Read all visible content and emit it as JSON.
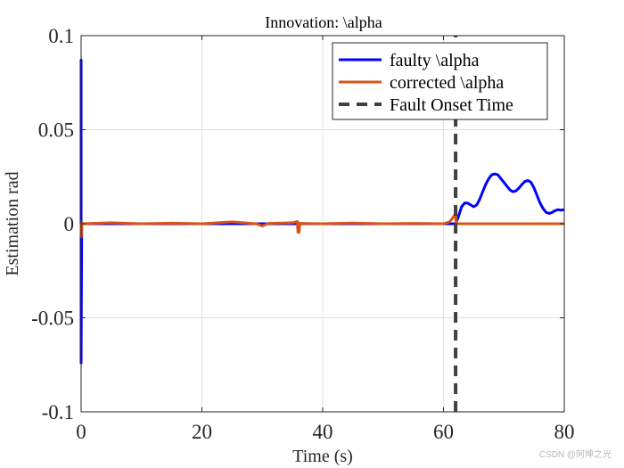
{
  "chart_data": {
    "type": "line",
    "title": "Innovation: \\alpha",
    "xlabel": "Time (s)",
    "ylabel": "Estimation rad",
    "xlim": [
      0,
      80
    ],
    "ylim": [
      -0.1,
      0.1
    ],
    "xticks": [
      0,
      20,
      40,
      60,
      80
    ],
    "xtick_labels": [
      "0",
      "20",
      "40",
      "60",
      "80"
    ],
    "yticks": [
      -0.1,
      -0.05,
      0,
      0.05,
      0.1
    ],
    "ytick_labels": [
      "-0.1",
      "-0.05",
      "0",
      "0.05",
      "0.1"
    ],
    "grid": true,
    "legend_position": "top-right",
    "series": [
      {
        "name": "faulty \\alpha",
        "color": "#0000ff",
        "x": [
          0,
          0,
          0,
          0.1,
          61.9,
          62,
          62.5,
          63,
          63.5,
          64,
          64.5,
          65,
          65.5,
          66,
          66.5,
          67,
          67.5,
          68,
          68.5,
          69,
          69.5,
          70,
          70.5,
          71,
          71.5,
          72,
          72.5,
          73,
          73.5,
          74,
          74.5,
          75,
          75.5,
          76,
          76.5,
          77,
          77.5,
          78,
          78.5,
          79,
          79.5,
          80
        ],
        "y": [
          0,
          0.087,
          -0.074,
          0,
          0,
          0.0,
          0.004,
          0.009,
          0.011,
          0.011,
          0.01,
          0.009,
          0.01,
          0.013,
          0.017,
          0.021,
          0.024,
          0.026,
          0.0265,
          0.026,
          0.024,
          0.022,
          0.02,
          0.018,
          0.017,
          0.0175,
          0.019,
          0.021,
          0.0225,
          0.023,
          0.022,
          0.019,
          0.015,
          0.011,
          0.008,
          0.006,
          0.0055,
          0.006,
          0.007,
          0.0075,
          0.0072,
          0.0075
        ]
      },
      {
        "name": "corrected \\alpha",
        "color": "#d95319",
        "x": [
          0,
          0.05,
          0.1,
          0.15,
          5,
          10,
          15,
          20,
          25,
          29,
          30,
          31,
          35,
          35.8,
          35.9,
          36,
          36.1,
          36.2,
          40,
          45,
          50,
          55,
          60,
          61,
          61.5,
          62,
          62.1,
          65,
          70,
          75,
          80
        ],
        "y": [
          0,
          -0.007,
          0.001,
          0,
          0.0005,
          0,
          0.0003,
          0,
          0.001,
          0,
          -0.0012,
          0.0002,
          0.0005,
          0.0012,
          -0.0045,
          0.0005,
          -0.0045,
          0.0002,
          0,
          0.0004,
          0,
          0.0002,
          0,
          0.001,
          0.003,
          0.0055,
          0,
          0,
          0,
          0,
          0
        ]
      },
      {
        "name": "Fault Onset Time",
        "color": "#404040",
        "style": "dashed",
        "x": [
          62,
          62
        ],
        "y": [
          -0.1,
          0.1
        ]
      }
    ]
  },
  "watermark": "CSDN @阿坤之光"
}
